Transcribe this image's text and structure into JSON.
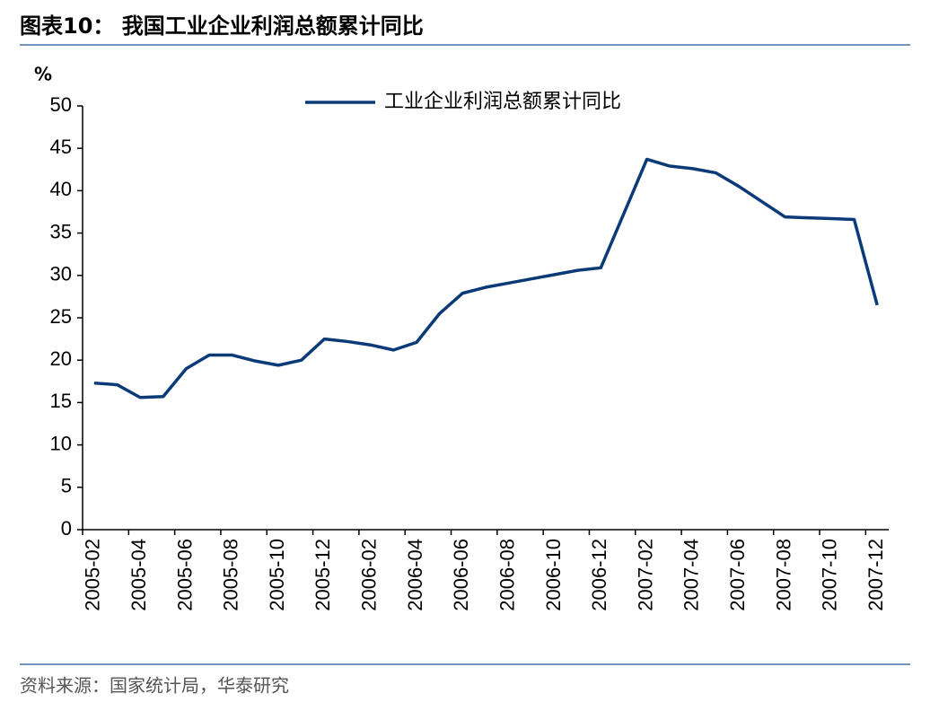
{
  "chart_data": {
    "type": "line",
    "title": "图表10： 我国工业企业利润总额累计同比",
    "y_label": "%",
    "source": "资料来源：国家统计局，华泰研究",
    "categories": [
      "2005-02",
      null,
      "2005-04",
      null,
      "2005-06",
      null,
      "2005-08",
      null,
      "2005-10",
      null,
      "2005-12",
      null,
      "2006-02",
      null,
      "2006-04",
      null,
      "2006-06",
      null,
      "2006-08",
      null,
      "2006-10",
      null,
      "2006-12",
      null,
      "2007-02",
      null,
      "2007-04",
      null,
      "2007-06",
      null,
      "2007-08",
      null,
      "2007-10",
      null,
      "2007-12"
    ],
    "series": [
      {
        "name": "工业企业利润总额累计同比",
        "color": "#0b3a78",
        "values": [
          17.3,
          17.1,
          15.6,
          15.7,
          19.0,
          20.6,
          20.6,
          19.9,
          19.4,
          20.0,
          22.5,
          22.2,
          21.8,
          21.2,
          22.1,
          25.5,
          27.9,
          28.6,
          29.1,
          29.6,
          30.1,
          30.6,
          30.9,
          37.3,
          43.7,
          42.9,
          42.6,
          42.1,
          40.5,
          38.7,
          36.9,
          36.8,
          36.7,
          36.6,
          26.5
        ]
      }
    ],
    "ylim": [
      0,
      50
    ],
    "yticks": [
      0,
      5,
      10,
      15,
      20,
      25,
      30,
      35,
      40,
      45,
      50
    ],
    "legend": "top"
  }
}
